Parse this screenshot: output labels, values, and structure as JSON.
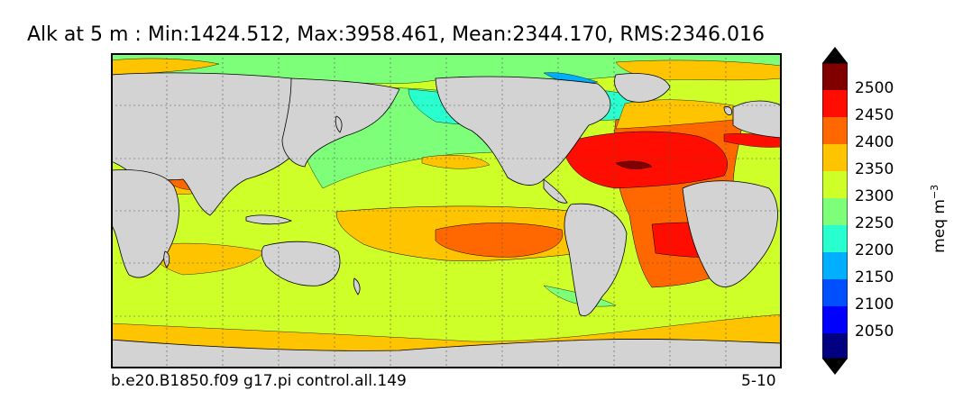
{
  "title": "Alk at 5 m : Min:1424.512, Max:3958.461, Mean:2344.170, RMS:2346.016",
  "footer": {
    "case": "b.e20.B1850.f09 g17.pi control.all.149",
    "years": "5-10"
  },
  "colorbar": {
    "units": "meq m",
    "units_exp": "−3",
    "tick_labels": [
      "2500",
      "2450",
      "2400",
      "2350",
      "2300",
      "2250",
      "2200",
      "2150",
      "2100",
      "2050"
    ],
    "colors": [
      "#000080",
      "#0000ff",
      "#0050ff",
      "#00b0ff",
      "#29ffce",
      "#7dff7a",
      "#ceff29",
      "#ffc400",
      "#ff6800",
      "#ff0d00",
      "#800000"
    ],
    "extend": "both"
  },
  "map": {
    "land_color": "#d3d3d3",
    "grid": true
  }
}
